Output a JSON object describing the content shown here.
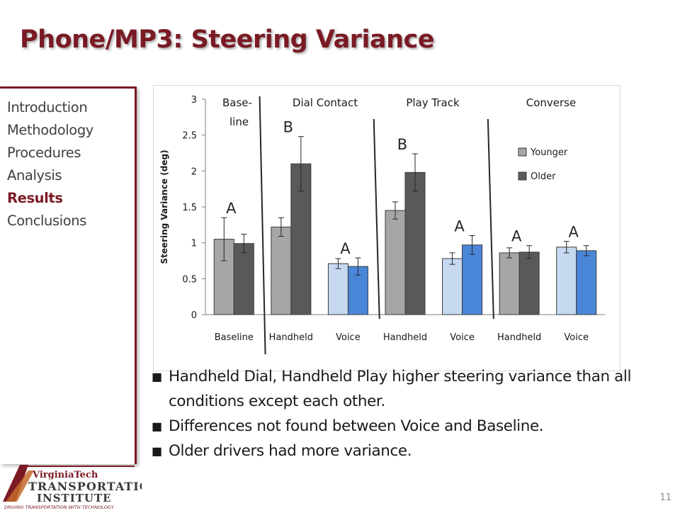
{
  "slide": {
    "title": "Phone/MP3: Steering Variance",
    "page_number": "11"
  },
  "nav": [
    {
      "label": "Introduction",
      "active": false
    },
    {
      "label": "Methodology",
      "active": false
    },
    {
      "label": "Procedures",
      "active": false
    },
    {
      "label": "Analysis",
      "active": false
    },
    {
      "label": "Results",
      "active": true
    },
    {
      "label": "Conclusions",
      "active": false
    }
  ],
  "bullets": [
    "Handheld Dial, Handheld Play higher steering variance than all conditions except each other.",
    "Differences not found between Voice and Baseline.",
    "Older drivers had more variance."
  ],
  "logo": {
    "line1": "VirginiaTech",
    "line2": "TRANSPORTATION",
    "line3": "INSTITUTE",
    "tagline": "DRIVING TRANSPORTATION WITH TECHNOLOGY"
  },
  "chart_data": {
    "type": "bar",
    "ylabel": "Steering Variance (deg)",
    "ylim": [
      0,
      3
    ],
    "yticks": [
      "0",
      "0.5",
      "1",
      "1.5",
      "2",
      "2.5",
      "3"
    ],
    "categories": [
      "Baseline",
      "Handheld",
      "Voice",
      "Handheld",
      "Voice",
      "Handheld",
      "Voice"
    ],
    "sections": [
      {
        "label": "Base-\nline"
      },
      {
        "label": "Dial Contact"
      },
      {
        "label": "Play Track"
      },
      {
        "label": "Converse"
      }
    ],
    "series": [
      {
        "name": "Younger",
        "values": [
          1.05,
          1.22,
          0.71,
          1.45,
          0.78,
          0.86,
          0.94
        ],
        "errors": [
          0.3,
          0.13,
          0.07,
          0.12,
          0.08,
          0.07,
          0.08
        ]
      },
      {
        "name": "Older",
        "values": [
          0.99,
          2.1,
          0.67,
          1.98,
          0.97,
          0.87,
          0.89
        ],
        "errors": [
          0.13,
          0.38,
          0.12,
          0.26,
          0.13,
          0.09,
          0.07
        ]
      }
    ],
    "group_letters": [
      "A",
      "B",
      "A",
      "B",
      "A",
      "A",
      "A"
    ],
    "legend": {
      "position": "right",
      "entries": [
        "Younger",
        "Older"
      ]
    },
    "colors": {
      "younger_gray": "#a6a6a6",
      "older_gray": "#595959",
      "younger_voice": "#c6d9f1",
      "older_voice": "#4a86d8",
      "outline": "#3a3a3a"
    },
    "grid": false
  }
}
